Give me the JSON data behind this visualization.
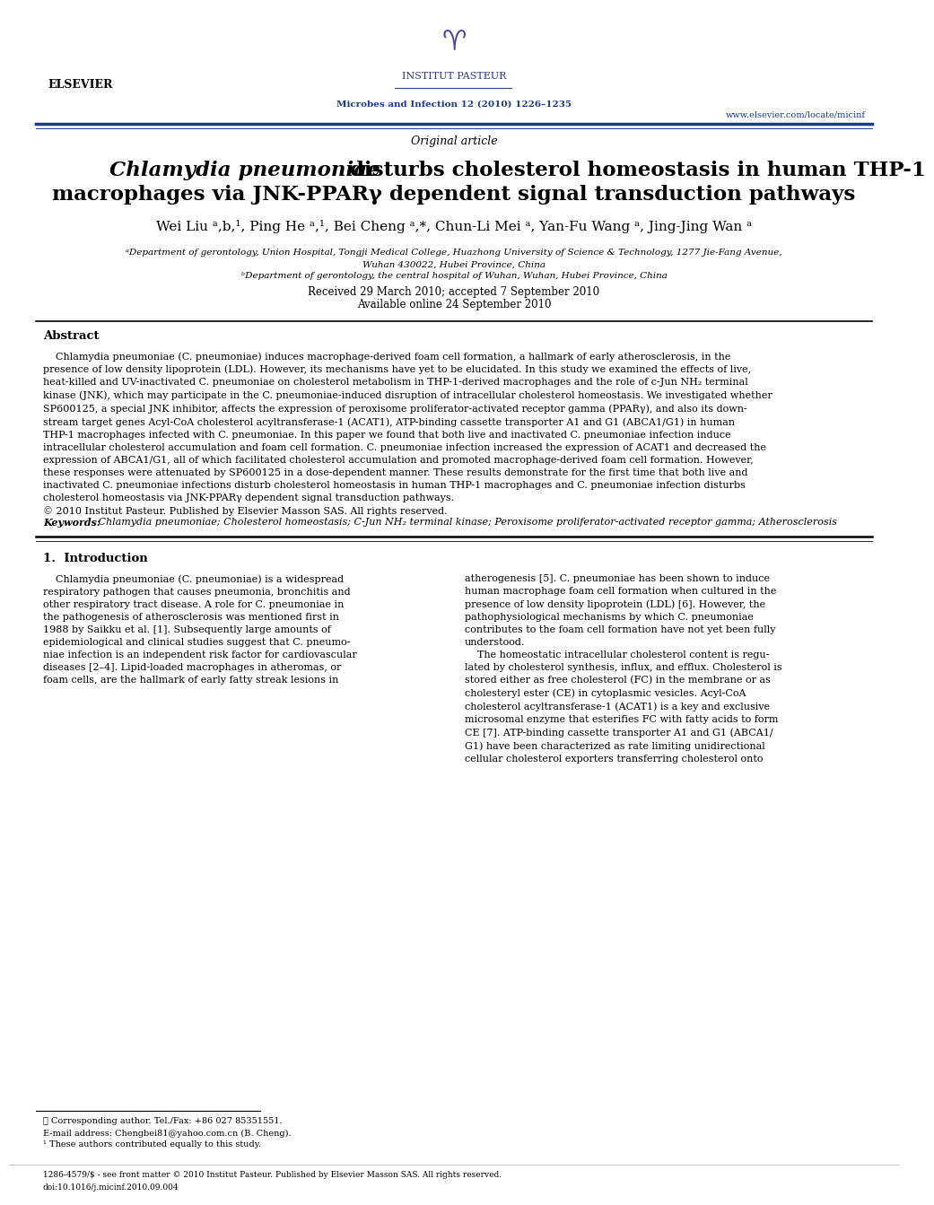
{
  "bg_color": "#ffffff",
  "header_line_color": "#2e4a8c",
  "journal_text": "Microbes and Infection 12 (2010) 1226–1235",
  "journal_text_color": "#1a3a8c",
  "website_text": "www.elsevier.com/locate/micinf",
  "website_text_color": "#1a3a8c",
  "institute_text": "INSTITUT PASTEUR",
  "institute_text_color": "#2e3a7c",
  "elsevier_text": "ELSEVIER",
  "section_label": "Original article",
  "title_italic_part": "Chlamydia pneumoniae",
  "title_rest": " disturbs cholesterol homeostasis in human THP-1\nmacrophages via JNK-PPARγ dependent signal transduction pathways",
  "authors": "Wei Liu ᵃ,b,¹, Ping He ᵃ,¹, Bei Cheng ᵃ,*, Chun-Li Mei ᵃ, Yan-Fu Wang ᵃ, Jing-Jing Wan ᵃ",
  "affil_a": "ᵃDepartment of gerontology, Union Hospital, Tongji Medical College, Huazhong University of Science & Technology, 1277 Jie-Fang Avenue,\nWuhan 430022, Hubei Province, China",
  "affil_b": "ᵇDepartment of gerontology, the central hospital of Wuhan, Wuhan, Hubei Province, China",
  "received": "Received 29 March 2010; accepted 7 September 2010",
  "available": "Available online 24 September 2010",
  "abstract_title": "Abstract",
  "keywords_label": "Keywords:",
  "keywords_text": " Chlamydia pneumoniae; Cholesterol homeostasis; C-Jun NH₂ terminal kinase; Peroxisome proliferator-activated receptor gamma; Atherosclerosis",
  "intro_title": "1.  Introduction",
  "footnote_line1": "★ Corresponding author. Tel./Fax: +86 027 85351551.",
  "footnote_line2": "E-mail address: Chengbei81@yahoo.com.cn (B. Cheng).",
  "footnote_line3": "¹ These authors contributed equally to this study.",
  "bottom_text1": "1286-4579/$ - see front matter © 2010 Institut Pasteur. Published by Elsevier Masson SAS. All rights reserved.",
  "bottom_text2": "doi:10.1016/j.micinf.2010.09.004"
}
